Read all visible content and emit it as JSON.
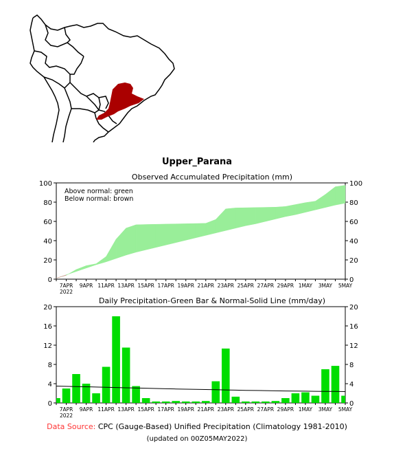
{
  "region_title": "Upper_Parana",
  "chart_data": [
    {
      "type": "area",
      "title": "Observed Accumulated Precipitation (mm)",
      "legend": [
        "Above normal: green",
        "Below normal: brown"
      ],
      "legend_placement": "top-left",
      "ylim": [
        0,
        100
      ],
      "yticks": [
        0,
        20,
        40,
        60,
        80,
        100
      ],
      "xticks": [
        "7APR\n2022",
        "9APR",
        "11APR",
        "13APR",
        "15APR",
        "17APR",
        "19APR",
        "21APR",
        "23APR",
        "25APR",
        "27APR",
        "29APR",
        "1MAY",
        "3MAY",
        "5MAY"
      ],
      "x": [
        "6APR",
        "7APR",
        "8APR",
        "9APR",
        "10APR",
        "11APR",
        "12APR",
        "13APR",
        "14APR",
        "15APR",
        "16APR",
        "17APR",
        "18APR",
        "19APR",
        "20APR",
        "21APR",
        "22APR",
        "23APR",
        "24APR",
        "25APR",
        "26APR",
        "27APR",
        "28APR",
        "29APR",
        "30APR",
        "1MAY",
        "2MAY",
        "3MAY",
        "4MAY",
        "5MAY"
      ],
      "series": [
        {
          "name": "Observed",
          "values": [
            1.0,
            4.0,
            10.0,
            14.0,
            16.0,
            23.5,
            41.5,
            53.0,
            56.5,
            56.8,
            57.0,
            57.2,
            57.4,
            57.6,
            57.8,
            58.0,
            62.0,
            73.0,
            74.0,
            74.2,
            74.4,
            74.6,
            74.8,
            75.5,
            77.5,
            79.5,
            81.0,
            88.0,
            96.0,
            97.5
          ]
        },
        {
          "name": "Normal",
          "values": [
            1.0,
            4.5,
            8.0,
            11.5,
            15.0,
            18.0,
            21.5,
            25.0,
            28.0,
            30.5,
            33.0,
            35.5,
            38.0,
            40.5,
            43.0,
            45.5,
            48.0,
            50.5,
            53.0,
            55.5,
            57.5,
            60.0,
            62.5,
            65.0,
            67.0,
            69.5,
            72.0,
            74.5,
            77.0,
            79.0
          ]
        }
      ],
      "colors": {
        "above": "#99ee99",
        "below": "#c8a08c"
      }
    },
    {
      "type": "bar",
      "title": "Daily Precipitation-Green Bar & Normal-Solid Line (mm/day)",
      "ylim": [
        0,
        20
      ],
      "yticks": [
        0,
        4,
        8,
        12,
        16,
        20
      ],
      "xticks": [
        "7APR\n2022",
        "9APR",
        "11APR",
        "13APR",
        "15APR",
        "17APR",
        "19APR",
        "21APR",
        "23APR",
        "25APR",
        "27APR",
        "29APR",
        "1MAY",
        "3MAY",
        "5MAY"
      ],
      "x": [
        "6APR",
        "7APR",
        "8APR",
        "9APR",
        "10APR",
        "11APR",
        "12APR",
        "13APR",
        "14APR",
        "15APR",
        "16APR",
        "17APR",
        "18APR",
        "19APR",
        "20APR",
        "21APR",
        "22APR",
        "23APR",
        "24APR",
        "25APR",
        "26APR",
        "27APR",
        "28APR",
        "29APR",
        "30APR",
        "1MAY",
        "2MAY",
        "3MAY",
        "4MAY",
        "5MAY"
      ],
      "series": [
        {
          "name": "Daily",
          "values": [
            1.0,
            3.0,
            6.0,
            4.0,
            2.0,
            7.5,
            18.0,
            11.5,
            3.5,
            1.0,
            0.3,
            0.3,
            0.4,
            0.3,
            0.3,
            0.4,
            4.5,
            11.3,
            1.3,
            0.3,
            0.3,
            0.3,
            0.4,
            1.0,
            2.0,
            2.2,
            1.5,
            7.0,
            7.7,
            1.5
          ]
        },
        {
          "name": "Normal",
          "values": [
            3.5,
            3.45,
            3.4,
            3.35,
            3.3,
            3.25,
            3.2,
            3.15,
            3.1,
            3.05,
            3.0,
            2.95,
            2.9,
            2.86,
            2.82,
            2.78,
            2.74,
            2.7,
            2.66,
            2.62,
            2.58,
            2.55,
            2.52,
            2.49,
            2.46,
            2.44,
            2.42,
            2.4,
            2.38,
            2.36
          ]
        }
      ],
      "colors": {
        "bar": "#00dd00",
        "line": "#000000"
      }
    }
  ],
  "footer": {
    "source_label": "Data Source:",
    "source_text": "CPC (Gauge-Based) Unified Precipitation (Climatology 1981-2010)",
    "updated": "(updated on 00Z05MAY2022)"
  },
  "map": {
    "icon": "south-america-map-icon",
    "colors": {
      "land_outline": "#000000",
      "region": "#aa0000"
    }
  }
}
